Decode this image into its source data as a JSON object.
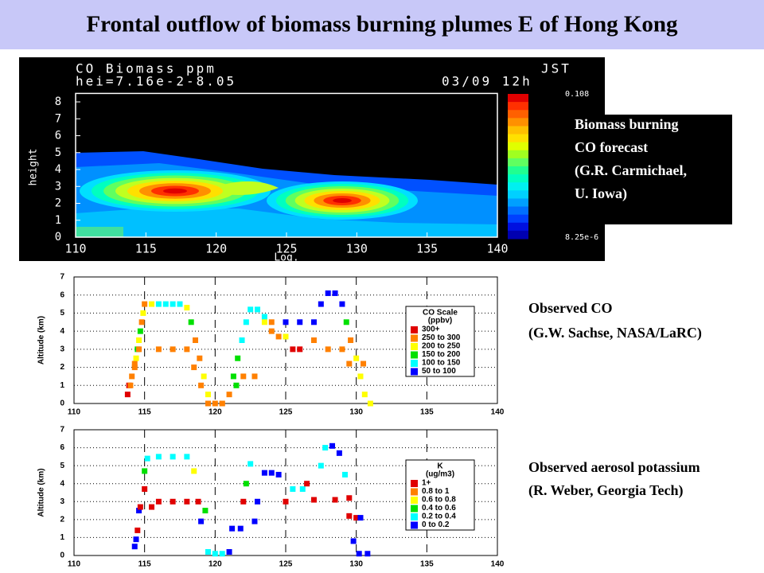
{
  "title": "Frontal outflow of biomass burning plumes E of Hong Kong",
  "model_panel": {
    "header_left_1": "CO Biomass ppm",
    "header_right_1": "JST",
    "header_left_2": "hei=7.16e-2-8.05",
    "header_right_2": "03/09  12h",
    "y_label": "height",
    "x_label": "Log.",
    "xlim": [
      110,
      140
    ],
    "xticks": [
      110,
      115,
      120,
      125,
      130,
      135,
      140
    ],
    "ylim": [
      0,
      8.5
    ],
    "yticks": [
      0,
      1,
      2,
      3,
      4,
      5,
      6,
      7,
      8
    ],
    "colorbar_max": "0.108",
    "colorbar_min": "8.25e-6",
    "caption": [
      "Biomass burning",
      "CO forecast",
      "(G.R. Carmichael,",
      "U. Iowa)"
    ]
  },
  "co_panel": {
    "y_label": "Altitude (km)",
    "xlim": [
      110,
      140
    ],
    "xticks": [
      110,
      115,
      120,
      125,
      130,
      135,
      140
    ],
    "ylim": [
      0,
      7
    ],
    "yticks": [
      0,
      1,
      2,
      3,
      4,
      5,
      6,
      7
    ],
    "legend": {
      "title": "CO Scale",
      "unit": "(ppbv)",
      "items": [
        {
          "label": "300+",
          "color": "#e00000"
        },
        {
          "label": "250 to 300",
          "color": "#ff8000"
        },
        {
          "label": "200 to 250",
          "color": "#ffff00"
        },
        {
          "label": "150 to 200",
          "color": "#00e000"
        },
        {
          "label": "100 to 150",
          "color": "#00ffff"
        },
        {
          "label": "50 to 100",
          "color": "#0000ff"
        }
      ]
    },
    "points": [
      [
        113.8,
        0.5,
        0
      ],
      [
        113.9,
        1,
        0
      ],
      [
        114.1,
        1.5,
        1
      ],
      [
        114.3,
        2,
        1
      ],
      [
        114.4,
        2.5,
        2
      ],
      [
        114.5,
        3,
        3
      ],
      [
        114.6,
        3.5,
        2
      ],
      [
        114.7,
        4,
        3
      ],
      [
        114.8,
        4.5,
        1
      ],
      [
        114.9,
        5,
        2
      ],
      [
        115,
        5.5,
        1
      ],
      [
        115.5,
        5.5,
        2
      ],
      [
        116,
        5.5,
        4
      ],
      [
        116.5,
        5.5,
        4
      ],
      [
        117,
        5.5,
        4
      ],
      [
        117.5,
        5.5,
        4
      ],
      [
        118,
        5.3,
        2
      ],
      [
        118.3,
        4.5,
        3
      ],
      [
        118.6,
        3.5,
        1
      ],
      [
        118.9,
        2.5,
        1
      ],
      [
        119.2,
        1.5,
        2
      ],
      [
        119.5,
        0.5,
        2
      ],
      [
        120,
        0,
        1
      ],
      [
        120.5,
        0,
        1
      ],
      [
        121,
        0.5,
        1
      ],
      [
        121.3,
        1.5,
        3
      ],
      [
        121.6,
        2.5,
        3
      ],
      [
        121.9,
        3.5,
        4
      ],
      [
        122.2,
        4.5,
        4
      ],
      [
        122.5,
        5.2,
        4
      ],
      [
        123,
        5.2,
        4
      ],
      [
        123.5,
        4.8,
        4
      ],
      [
        124,
        4.5,
        1
      ],
      [
        125,
        4.5,
        5
      ],
      [
        126,
        4.5,
        5
      ],
      [
        127,
        4.5,
        5
      ],
      [
        127.5,
        5.5,
        5
      ],
      [
        128,
        6.1,
        5
      ],
      [
        128.5,
        6.1,
        5
      ],
      [
        129,
        5.5,
        5
      ],
      [
        129.3,
        4.5,
        3
      ],
      [
        129.6,
        3.5,
        1
      ],
      [
        130,
        2.5,
        2
      ],
      [
        130.3,
        1.5,
        2
      ],
      [
        130.6,
        0.5,
        2
      ],
      [
        131,
        0,
        2
      ],
      [
        114,
        1,
        1
      ],
      [
        114.3,
        2.2,
        1
      ],
      [
        114.6,
        3,
        1
      ],
      [
        116,
        3,
        1
      ],
      [
        117,
        3,
        1
      ],
      [
        118,
        3,
        1
      ],
      [
        118.5,
        2,
        1
      ],
      [
        119,
        1,
        1
      ],
      [
        119.5,
        0,
        1
      ],
      [
        120.5,
        0,
        1
      ],
      [
        121.5,
        1,
        3
      ],
      [
        122,
        1.5,
        1
      ],
      [
        122.8,
        1.5,
        1
      ],
      [
        123.5,
        4.5,
        2
      ],
      [
        124,
        4,
        1
      ],
      [
        124.5,
        3.7,
        1
      ],
      [
        125,
        3.7,
        2
      ],
      [
        125.5,
        3,
        0
      ],
      [
        126,
        3,
        0
      ],
      [
        127,
        3.5,
        1
      ],
      [
        128,
        3,
        1
      ],
      [
        129,
        3,
        1
      ],
      [
        129.5,
        2.2,
        1
      ],
      [
        130.5,
        2.2,
        1
      ]
    ],
    "caption": [
      "Observed CO",
      "(G.W. Sachse, NASA/LaRC)"
    ]
  },
  "k_panel": {
    "y_label": "Altitude (km)",
    "xlim": [
      110,
      140
    ],
    "xticks": [
      110,
      115,
      120,
      125,
      130,
      135,
      140
    ],
    "ylim": [
      0,
      7
    ],
    "yticks": [
      0,
      1,
      2,
      3,
      4,
      5,
      6,
      7
    ],
    "legend": {
      "title": "K",
      "unit": "(ug/m3)",
      "items": [
        {
          "label": "1+",
          "color": "#e00000"
        },
        {
          "label": "0.8 to 1",
          "color": "#ff8000"
        },
        {
          "label": "0.6 to 0.8",
          "color": "#ffff00"
        },
        {
          "label": "0.4 to 0.6",
          "color": "#00e000"
        },
        {
          "label": "0.2 to 0.4",
          "color": "#00ffff"
        },
        {
          "label": "0 to 0.2",
          "color": "#0000ff"
        }
      ]
    },
    "points": [
      [
        114.3,
        0.5,
        5
      ],
      [
        114.4,
        0.9,
        5
      ],
      [
        114.5,
        1.4,
        0
      ],
      [
        114.6,
        2.5,
        5
      ],
      [
        114.7,
        2.7,
        0
      ],
      [
        115,
        3.7,
        0
      ],
      [
        115,
        4.7,
        3
      ],
      [
        115.2,
        5.4,
        4
      ],
      [
        116,
        5.5,
        4
      ],
      [
        117,
        5.5,
        4
      ],
      [
        118,
        5.5,
        4
      ],
      [
        115.5,
        2.7,
        0
      ],
      [
        116,
        3,
        0
      ],
      [
        117,
        3,
        0
      ],
      [
        118,
        3,
        0
      ],
      [
        118.5,
        4.7,
        2
      ],
      [
        118.8,
        3,
        0
      ],
      [
        119,
        1.9,
        5
      ],
      [
        119.3,
        2.5,
        3
      ],
      [
        119.5,
        0.2,
        4
      ],
      [
        120,
        0.1,
        4
      ],
      [
        120.5,
        0.1,
        4
      ],
      [
        121,
        0.2,
        5
      ],
      [
        121.2,
        1.5,
        5
      ],
      [
        121.8,
        1.5,
        5
      ],
      [
        122,
        3,
        0
      ],
      [
        122.2,
        4,
        3
      ],
      [
        122.5,
        5.1,
        4
      ],
      [
        122.8,
        1.9,
        5
      ],
      [
        123,
        3,
        5
      ],
      [
        123.5,
        4.6,
        5
      ],
      [
        124,
        4.6,
        5
      ],
      [
        124.5,
        4.5,
        5
      ],
      [
        125,
        3,
        0
      ],
      [
        125.5,
        3.7,
        4
      ],
      [
        126.2,
        3.7,
        4
      ],
      [
        126.5,
        4,
        0
      ],
      [
        127,
        3.1,
        0
      ],
      [
        127.5,
        5,
        4
      ],
      [
        127.8,
        6,
        4
      ],
      [
        128.3,
        6.1,
        5
      ],
      [
        128.5,
        3.1,
        0
      ],
      [
        128.8,
        5.7,
        5
      ],
      [
        129.2,
        4.5,
        4
      ],
      [
        129.5,
        3.2,
        0
      ],
      [
        129.5,
        2.2,
        0
      ],
      [
        130,
        2.1,
        0
      ],
      [
        130.3,
        2.1,
        5
      ],
      [
        129.8,
        0.8,
        5
      ],
      [
        130.2,
        0.1,
        5
      ],
      [
        130.8,
        0.1,
        5
      ]
    ],
    "caption": [
      "Observed aerosol potassium",
      "(R. Weber, Georgia Tech)"
    ]
  }
}
